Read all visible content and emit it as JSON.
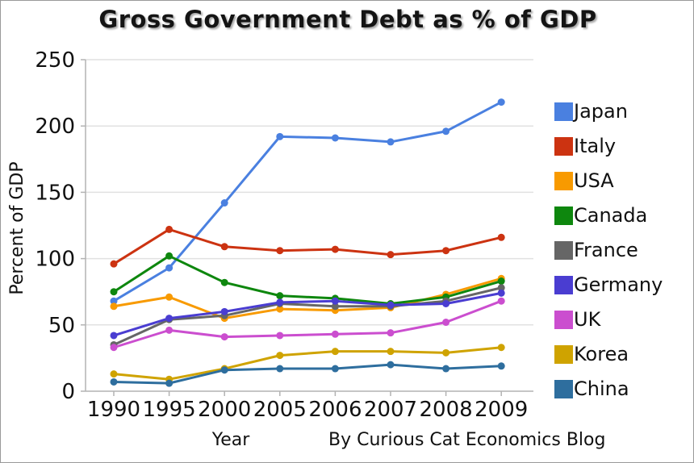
{
  "credit": "By Curious Cat Economics Blog",
  "chart_data": {
    "type": "line",
    "title": "Gross Government Debt as % of GDP",
    "xlabel": "Year",
    "ylabel": "Percent of GDP",
    "ylim": [
      0,
      250
    ],
    "ytick_step": 50,
    "grid": true,
    "legend_position": "right",
    "marker": "circle",
    "categories": [
      "1990",
      "1995",
      "2000",
      "2005",
      "2006",
      "2007",
      "2008",
      "2009"
    ],
    "series": [
      {
        "name": "Japan",
        "color": "#4a80e0",
        "values": [
          68,
          93,
          142,
          192,
          191,
          188,
          196,
          218
        ]
      },
      {
        "name": "Italy",
        "color": "#cc3311",
        "values": [
          96,
          122,
          109,
          106,
          107,
          103,
          106,
          116
        ]
      },
      {
        "name": "USA",
        "color": "#f89a00",
        "values": [
          64,
          71,
          55,
          62,
          61,
          63,
          73,
          85
        ]
      },
      {
        "name": "Canada",
        "color": "#0e870e",
        "values": [
          75,
          102,
          82,
          72,
          70,
          66,
          71,
          83
        ]
      },
      {
        "name": "France",
        "color": "#666666",
        "values": [
          35,
          54,
          57,
          66,
          64,
          64,
          68,
          78
        ]
      },
      {
        "name": "Germany",
        "color": "#4a3dd1",
        "values": [
          42,
          55,
          60,
          67,
          68,
          65,
          66,
          74
        ]
      },
      {
        "name": "UK",
        "color": "#cb4ecf",
        "values": [
          33,
          46,
          41,
          42,
          43,
          44,
          52,
          68
        ]
      },
      {
        "name": "Korea",
        "color": "#cfa300",
        "values": [
          13,
          9,
          17,
          27,
          30,
          30,
          29,
          33
        ]
      },
      {
        "name": "China",
        "color": "#2e6e9e",
        "values": [
          7,
          6,
          16,
          17,
          17,
          20,
          17,
          19
        ]
      }
    ]
  }
}
